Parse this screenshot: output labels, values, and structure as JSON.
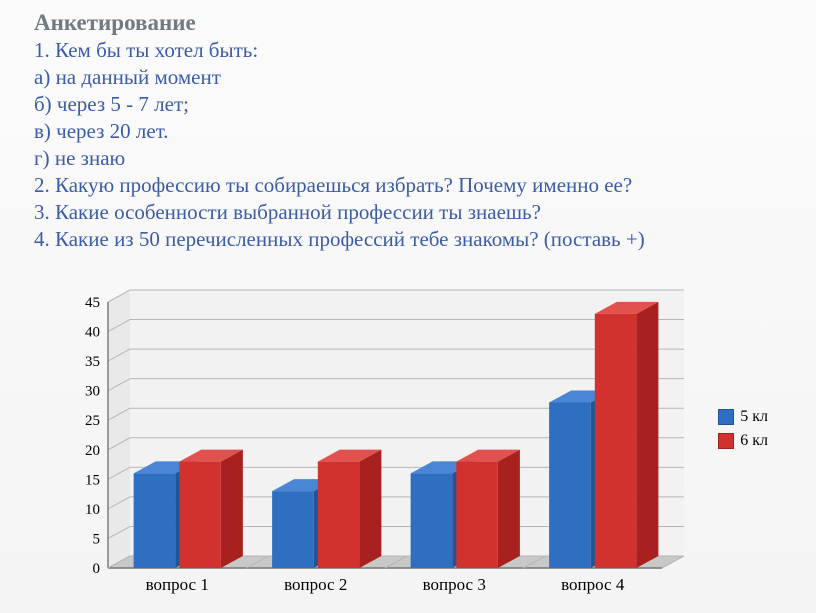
{
  "title": "Анкетирование",
  "lines": [
    "1. Кем бы ты хотел быть:",
    "а) на данный момент",
    "б) через 5 - 7 лет;",
    "в) через 20 лет.",
    "г) не знаю",
    "2. Какую профессию ты собираешься избрать? Почему именно ее?",
    "3. Какие особенности выбранной профессии ты знаешь?",
    "4. Какие из 50 перечисленных профессий тебе знакомы? (поставь +)"
  ],
  "chart": {
    "type": "bar3d",
    "categories": [
      "вопрос 1",
      "вопрос 2",
      "вопрос 3",
      "вопрос 4"
    ],
    "series": [
      {
        "name": "5 кл",
        "values": [
          16,
          13,
          16,
          28
        ],
        "fill": "#2f6fc1",
        "fill_top": "#4a86d4",
        "fill_side": "#235496"
      },
      {
        "name": "6 кл",
        "values": [
          18,
          18,
          18,
          43
        ],
        "fill": "#d2322d",
        "fill_top": "#e2514d",
        "fill_side": "#a8211e"
      }
    ],
    "ylim": [
      0,
      45
    ],
    "ytick_step": 5,
    "axis_color": "#757575",
    "grid_color": "#b6b6b6",
    "floor_color": "#c8c8c8",
    "wall_color": "#e9e9e9",
    "tick_font_size": 15,
    "cat_font_size": 17,
    "legend_font_size": 16,
    "bar_group_gap": 0.25,
    "bar_width": 0.3,
    "depth_dx": 22,
    "depth_dy": 12
  }
}
